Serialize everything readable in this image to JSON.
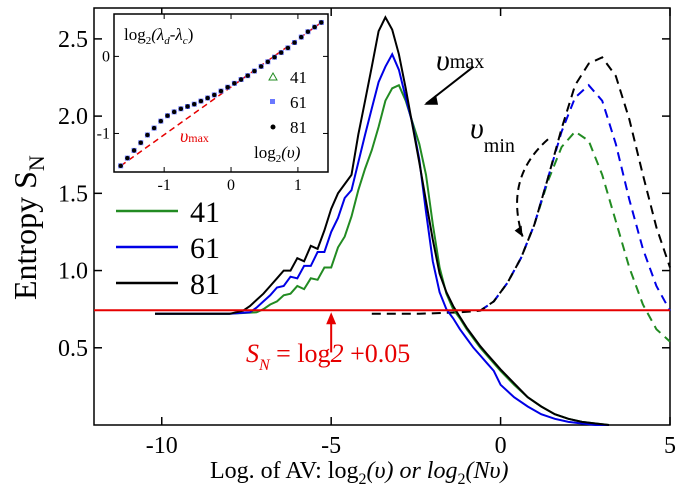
{
  "chart_data": {
    "type": "line",
    "xlabel": "Log. of AV: log",
    "xlabel_sub1": "2",
    "xlabel_mid": "(υ) or log",
    "xlabel_sub2": "2",
    "xlabel_end": "(Nυ)",
    "ylabel": "Entropy S",
    "ylabel_sub": "N",
    "xlim": [
      -12,
      5
    ],
    "ylim": [
      0.0,
      2.7
    ],
    "xticks": [
      -10,
      -5,
      0,
      5
    ],
    "xtick_labels": [
      "-10",
      "-5",
      "0",
      "5"
    ],
    "yticks": [
      0.5,
      1.0,
      1.5,
      2.0,
      2.5
    ],
    "ytick_labels": [
      "0.5",
      "1.0",
      "1.5",
      "2.0",
      "2.5"
    ],
    "colors": {
      "41": "#228b22",
      "61": "#0000e6",
      "81": "#000000",
      "threshold": "#e60000"
    },
    "legend": {
      "placement": "left",
      "items": [
        {
          "label": "41",
          "color": "#228b22"
        },
        {
          "label": "61",
          "color": "#0000e6"
        },
        {
          "label": "81",
          "color": "#000000"
        }
      ]
    },
    "threshold": {
      "y": 0.743,
      "label_pre": "S",
      "label_sub": "N",
      "label_eq": " = log",
      "label_it": "2",
      "label_post": " +0.05"
    },
    "annotations": {
      "vmax": "υ",
      "vmax_sub": "max",
      "vmin": "υ",
      "vmin_sub": "min"
    },
    "series_solid": [
      {
        "name": "41",
        "color": "#228b22",
        "x": [
          -10.2,
          -8.0,
          -7.2,
          -7.0,
          -6.8,
          -6.6,
          -6.4,
          -6.2,
          -6.0,
          -5.8,
          -5.6,
          -5.4,
          -5.2,
          -5.0,
          -4.8,
          -4.6,
          -4.4,
          -4.2,
          -4.0,
          -3.8,
          -3.6,
          -3.4,
          -3.2,
          -3.0,
          -2.8,
          -2.6,
          -2.4,
          -2.2,
          -2.0,
          -1.8,
          -1.6,
          -1.4,
          -1.2,
          -1.0,
          -0.8,
          -0.6,
          -0.4,
          -0.2,
          0.0,
          0.4,
          0.8,
          1.2,
          1.6,
          2.0,
          2.4,
          2.8,
          3.2
        ],
        "y": [
          0.72,
          0.72,
          0.73,
          0.75,
          0.78,
          0.8,
          0.84,
          0.85,
          0.9,
          0.88,
          0.95,
          0.94,
          1.02,
          1.02,
          1.15,
          1.22,
          1.35,
          1.52,
          1.66,
          1.78,
          1.93,
          2.1,
          2.18,
          2.2,
          2.1,
          1.96,
          1.82,
          1.62,
          1.3,
          1.02,
          0.85,
          0.75,
          0.69,
          0.62,
          0.56,
          0.5,
          0.45,
          0.4,
          0.35,
          0.26,
          0.18,
          0.12,
          0.07,
          0.04,
          0.02,
          0.01,
          0.0
        ]
      },
      {
        "name": "61",
        "color": "#0000e6",
        "x": [
          -10.2,
          -8.0,
          -7.4,
          -7.2,
          -7.0,
          -6.8,
          -6.6,
          -6.4,
          -6.2,
          -6.0,
          -5.8,
          -5.6,
          -5.4,
          -5.2,
          -5.0,
          -4.8,
          -4.6,
          -4.4,
          -4.2,
          -4.0,
          -3.8,
          -3.6,
          -3.4,
          -3.2,
          -3.0,
          -2.8,
          -2.6,
          -2.4,
          -2.2,
          -2.0,
          -1.8,
          -1.6,
          -1.4,
          -1.2,
          -1.0,
          -0.8,
          -0.6,
          -0.4,
          -0.2,
          0.0,
          0.4,
          0.8,
          1.2,
          1.6,
          2.0,
          2.4,
          2.8,
          3.2
        ],
        "y": [
          0.72,
          0.72,
          0.73,
          0.76,
          0.8,
          0.84,
          0.89,
          0.9,
          0.96,
          0.95,
          1.03,
          1.03,
          1.12,
          1.12,
          1.25,
          1.34,
          1.47,
          1.52,
          1.7,
          1.88,
          2.05,
          2.22,
          2.32,
          2.4,
          2.3,
          2.12,
          1.95,
          1.72,
          1.38,
          1.06,
          0.86,
          0.75,
          0.69,
          0.62,
          0.56,
          0.5,
          0.45,
          0.4,
          0.35,
          0.26,
          0.18,
          0.12,
          0.07,
          0.04,
          0.02,
          0.01,
          0.0,
          0.0
        ]
      },
      {
        "name": "81",
        "color": "#000000",
        "x": [
          -10.2,
          -8.0,
          -7.6,
          -7.4,
          -7.2,
          -7.0,
          -6.8,
          -6.6,
          -6.4,
          -6.2,
          -6.0,
          -5.8,
          -5.6,
          -5.4,
          -5.2,
          -5.0,
          -4.8,
          -4.6,
          -4.4,
          -4.2,
          -4.0,
          -3.8,
          -3.6,
          -3.4,
          -3.2,
          -3.0,
          -2.8,
          -2.6,
          -2.4,
          -2.2,
          -2.0,
          -1.8,
          -1.6,
          -1.4,
          -1.2,
          -1.0,
          -0.8,
          -0.6,
          -0.4,
          -0.2,
          0.0,
          0.4,
          0.8,
          1.2,
          1.6,
          2.0,
          2.4,
          2.8,
          3.2
        ],
        "y": [
          0.72,
          0.72,
          0.74,
          0.77,
          0.81,
          0.85,
          0.9,
          0.95,
          1.0,
          1.0,
          1.08,
          1.06,
          1.16,
          1.14,
          1.26,
          1.4,
          1.5,
          1.56,
          1.62,
          1.88,
          2.1,
          2.32,
          2.55,
          2.64,
          2.56,
          2.4,
          2.18,
          1.94,
          1.7,
          1.45,
          1.2,
          0.98,
          0.86,
          0.77,
          0.7,
          0.63,
          0.57,
          0.51,
          0.46,
          0.41,
          0.36,
          0.27,
          0.18,
          0.12,
          0.07,
          0.04,
          0.02,
          0.01,
          0.0
        ]
      }
    ],
    "series_dashed": [
      {
        "name": "41",
        "color": "#228b22",
        "x": [
          -0.6,
          -0.2,
          0.2,
          0.6,
          1.0,
          1.4,
          1.8,
          2.2,
          2.6,
          3.0,
          3.4,
          3.8,
          4.2,
          4.6,
          5.0
        ],
        "y": [
          0.74,
          0.8,
          0.92,
          1.08,
          1.3,
          1.58,
          1.8,
          1.9,
          1.84,
          1.62,
          1.32,
          1.02,
          0.78,
          0.62,
          0.54
        ]
      },
      {
        "name": "61",
        "color": "#0000e6",
        "x": [
          -0.6,
          -0.2,
          0.2,
          0.6,
          1.0,
          1.4,
          1.8,
          2.2,
          2.6,
          3.0,
          3.4,
          3.8,
          4.2,
          4.6,
          5.0
        ],
        "y": [
          0.74,
          0.8,
          0.92,
          1.08,
          1.3,
          1.6,
          1.9,
          2.12,
          2.2,
          2.1,
          1.82,
          1.46,
          1.14,
          0.9,
          0.74
        ]
      },
      {
        "name": "81",
        "color": "#000000",
        "x": [
          -3.8,
          -2.4,
          -1.2,
          -0.6,
          -0.2,
          0.2,
          0.6,
          1.0,
          1.4,
          1.8,
          2.2,
          2.6,
          3.0,
          3.4,
          3.8,
          4.2,
          4.6,
          5.0
        ],
        "y": [
          0.72,
          0.72,
          0.73,
          0.74,
          0.8,
          0.92,
          1.08,
          1.3,
          1.6,
          1.92,
          2.2,
          2.34,
          2.38,
          2.26,
          1.98,
          1.62,
          1.28,
          1.02
        ]
      }
    ],
    "inset": {
      "type": "scatter",
      "ylabel": "log",
      "ylabel_sub": "2",
      "ylabel_paren": "(λ",
      "ylabel_d": "d",
      "ylabel_minus": "-λ",
      "ylabel_c": "c",
      "ylabel_close": ")",
      "xlabel": "log",
      "xlabel_sub": "2",
      "xlabel_end": "(υ)",
      "xlim": [
        -1.75,
        1.45
      ],
      "ylim": [
        -1.5,
        0.55
      ],
      "xticks": [
        -1,
        0,
        1
      ],
      "xtick_labels": [
        "-1",
        "0",
        "1"
      ],
      "yticks": [
        -1,
        0
      ],
      "ytick_labels": [
        "-1",
        "0"
      ],
      "annotation": "υ",
      "annotation_sub": "max",
      "legend": [
        {
          "label": "41",
          "marker": "triangle",
          "color": "#228b22"
        },
        {
          "label": "61",
          "marker": "square",
          "color": "#0000e6"
        },
        {
          "label": "81",
          "marker": "dot",
          "color": "#000000"
        }
      ],
      "points_x": [
        -1.65,
        -1.55,
        -1.45,
        -1.35,
        -1.25,
        -1.15,
        -1.05,
        -0.95,
        -0.85,
        -0.75,
        -0.65,
        -0.55,
        -0.45,
        -0.35,
        -0.25,
        -0.15,
        -0.05,
        0.05,
        0.15,
        0.25,
        0.35,
        0.45,
        0.55,
        0.65,
        0.75,
        0.85,
        0.95,
        1.05,
        1.15,
        1.25,
        1.35
      ],
      "points_y": [
        -1.42,
        -1.32,
        -1.22,
        -1.12,
        -1.02,
        -0.93,
        -0.84,
        -0.77,
        -0.72,
        -0.68,
        -0.65,
        -0.62,
        -0.58,
        -0.54,
        -0.5,
        -0.45,
        -0.4,
        -0.35,
        -0.3,
        -0.25,
        -0.19,
        -0.13,
        -0.07,
        -0.01,
        0.05,
        0.11,
        0.18,
        0.25,
        0.32,
        0.38,
        0.44
      ],
      "fit_x": [
        -1.65,
        1.35
      ],
      "fit_y": [
        -1.42,
        0.44
      ]
    }
  }
}
